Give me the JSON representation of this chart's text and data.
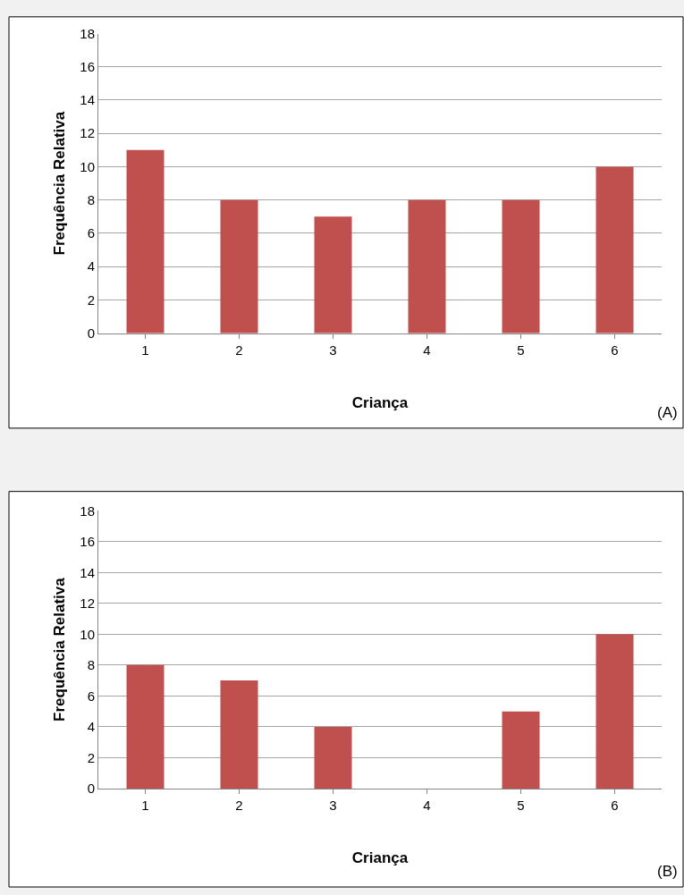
{
  "chart_data": [
    {
      "type": "bar",
      "categories": [
        "1",
        "2",
        "3",
        "4",
        "5",
        "6"
      ],
      "values": [
        11,
        8,
        7,
        8,
        8,
        10
      ],
      "color": "#c0504d",
      "xlabel": "Criança",
      "ylabel": "Frequência Relativa",
      "ylim": [
        0,
        18
      ],
      "yticks": [
        0,
        2,
        4,
        6,
        8,
        10,
        12,
        14,
        16,
        18
      ],
      "grid": "y",
      "annotations": [
        "(A)"
      ]
    },
    {
      "type": "bar",
      "categories": [
        "1",
        "2",
        "3",
        "4",
        "5",
        "6"
      ],
      "values": [
        8,
        7,
        4,
        0,
        5,
        10
      ],
      "color": "#c0504d",
      "xlabel": "Criança",
      "ylabel": "Frequência Relativa",
      "ylim": [
        0,
        18
      ],
      "yticks": [
        0,
        2,
        4,
        6,
        8,
        10,
        12,
        14,
        16,
        18
      ],
      "grid": "y",
      "annotations": [
        "(B)"
      ]
    }
  ]
}
